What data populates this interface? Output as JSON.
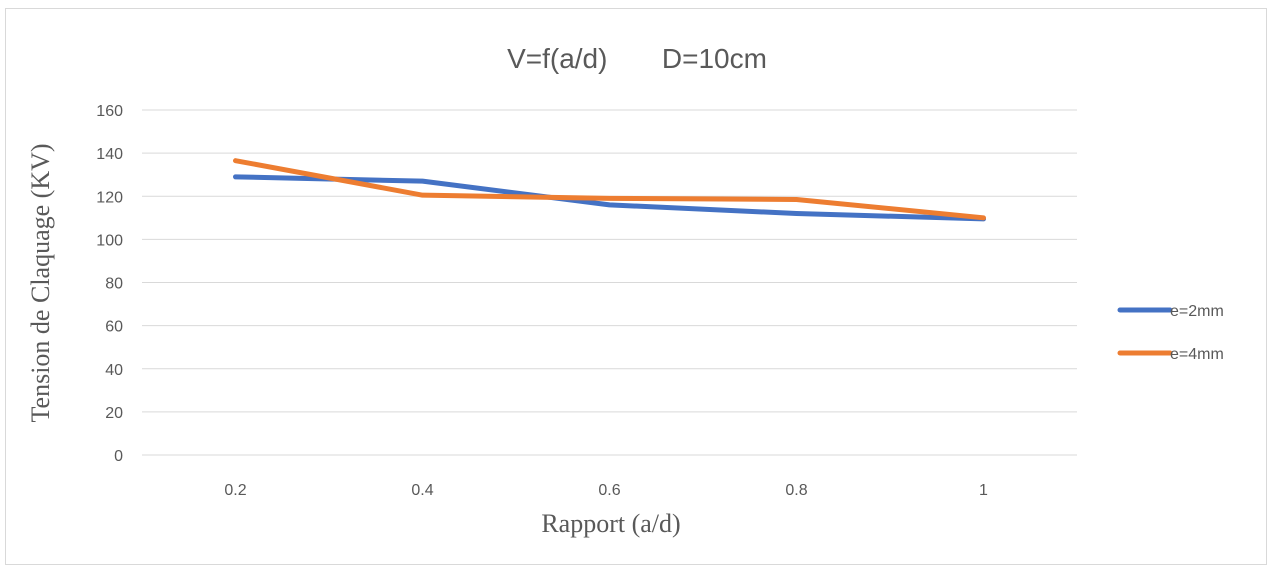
{
  "chart_data": {
    "type": "line",
    "title": "V=f(a/d)       D=10cm",
    "xlabel": "Rapport (a/d)",
    "ylabel": "Tension de Claquage (KV)",
    "categories": [
      "0.2",
      "0.4",
      "0.6",
      "0.8",
      "1"
    ],
    "ylim": [
      0,
      160
    ],
    "yticks": [
      0,
      20,
      40,
      60,
      80,
      100,
      120,
      140,
      160
    ],
    "grid": true,
    "legend_position": "right",
    "series": [
      {
        "name": "e=2mm",
        "color": "#4472c4",
        "values": [
          129,
          127,
          116,
          112,
          109.5
        ]
      },
      {
        "name": "e=4mm",
        "color": "#ed7d31",
        "values": [
          136.5,
          120.5,
          119,
          118.5,
          110
        ]
      }
    ]
  }
}
